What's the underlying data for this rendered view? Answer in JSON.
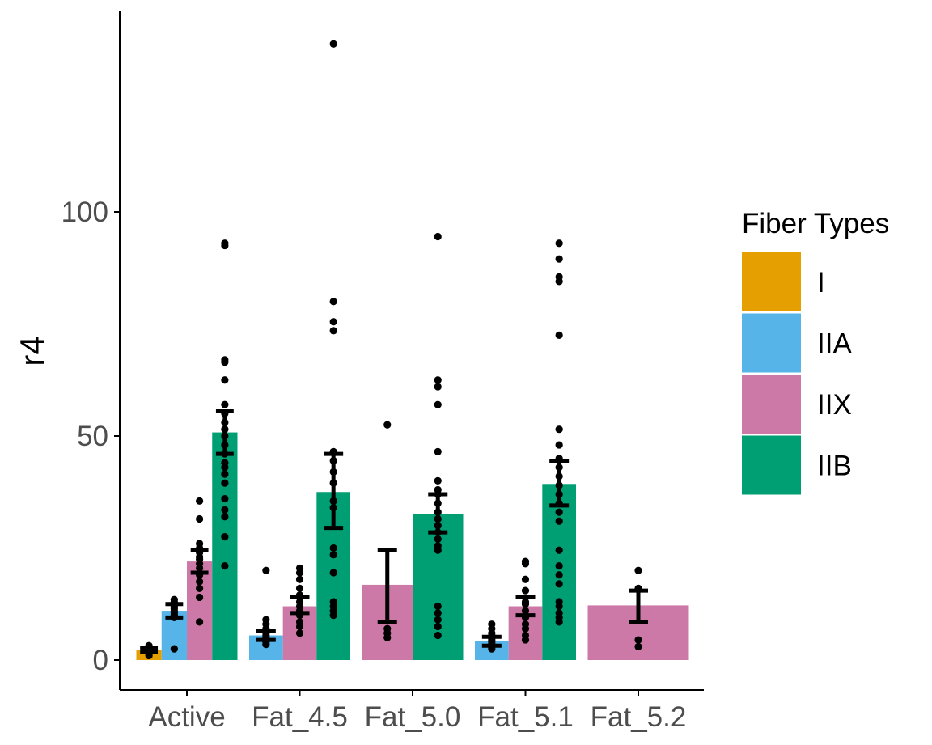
{
  "chart_data": {
    "type": "bar",
    "title": "",
    "xlabel": "",
    "ylabel": "r4",
    "ylim": [
      -7,
      138
    ],
    "yticks": [
      0,
      50,
      100
    ],
    "grid": false,
    "legend_position": "right",
    "legend_title": "Fiber Types",
    "categories": [
      "Active",
      "Fat_4.5",
      "Fat_5.0",
      "Fat_5.1",
      "Fat_5.2"
    ],
    "series": [
      {
        "name": "I",
        "color": "#E69F00"
      },
      {
        "name": "IIA",
        "color": "#56B4E9"
      },
      {
        "name": "IIX",
        "color": "#CC79A7"
      },
      {
        "name": "IIB",
        "color": "#009E73"
      }
    ],
    "groups": [
      {
        "category": "Active",
        "bars": [
          {
            "series": "I",
            "value": 2.3,
            "error": [
              1.8,
              2.8
            ],
            "points": [
              1.0,
              1.3,
              1.6,
              1.9,
              2.2,
              2.5,
              2.8,
              3.2
            ]
          },
          {
            "series": "IIA",
            "value": 11,
            "error": [
              9.5,
              12.5
            ],
            "points": [
              2.5,
              9.5,
              10.0,
              10.5,
              11.0,
              11.5,
              12.0,
              12.5,
              13.0,
              13.5
            ]
          },
          {
            "series": "IIX",
            "value": 22,
            "error": [
              19.5,
              24.5
            ],
            "points": [
              8.5,
              14,
              16,
              17.5,
              19,
              20.5,
              21.5,
              22.5,
              23,
              24,
              25,
              26,
              31.5,
              35.5
            ]
          },
          {
            "series": "IIB",
            "value": 50.8,
            "error": [
              46,
              55.5
            ],
            "points": [
              21,
              27.5,
              32,
              33.5,
              36,
              39.5,
              41.5,
              43,
              44,
              46,
              48,
              50,
              51.5,
              53,
              55,
              57,
              62.5,
              66.5,
              67,
              92.5,
              93
            ]
          }
        ]
      },
      {
        "category": "Fat_4.5",
        "bars": [
          {
            "series": "IIA",
            "value": 5.5,
            "error": [
              4.5,
              6.5
            ],
            "points": [
              3.5,
              4.0,
              4.5,
              5.0,
              5.5,
              6.0,
              6.5,
              7.0,
              8.0,
              9.0,
              20.0
            ]
          },
          {
            "series": "IIX",
            "value": 12,
            "error": [
              10.5,
              14
            ],
            "points": [
              6,
              7.5,
              8.5,
              10,
              11,
              12,
              13,
              14.5,
              16,
              18,
              19.5,
              20.5
            ]
          },
          {
            "series": "IIB",
            "value": 37.5,
            "error": [
              29.5,
              46
            ],
            "points": [
              10,
              11,
              12,
              13,
              19.5,
              23.5,
              25,
              34,
              35.5,
              39.5,
              42,
              44.5,
              46.5,
              73.5,
              75.5,
              80,
              137.5
            ]
          }
        ]
      },
      {
        "category": "Fat_5.0",
        "bars": [
          {
            "series": "IIX",
            "value": 16.8,
            "error": [
              8.5,
              24.5
            ],
            "points": [
              5,
              6,
              7,
              52.5
            ]
          },
          {
            "series": "IIB",
            "value": 32.5,
            "error": [
              28.5,
              37
            ],
            "points": [
              5.5,
              7.5,
              9,
              10.5,
              12,
              24.5,
              25.5,
              27,
              28.5,
              30,
              31.5,
              33,
              35,
              37,
              38,
              40,
              46.5,
              57,
              61,
              62.5,
              94.5
            ]
          }
        ]
      },
      {
        "category": "Fat_5.1",
        "bars": [
          {
            "series": "IIA",
            "value": 4.2,
            "error": [
              3.2,
              5.2
            ],
            "points": [
              2.5,
              3.0,
              3.5,
              4.0,
              4.5,
              5.0,
              5.5,
              6.0,
              7.0,
              8.0
            ]
          },
          {
            "series": "IIX",
            "value": 12,
            "error": [
              10,
              14
            ],
            "points": [
              4.5,
              5.5,
              7,
              8,
              9.5,
              11,
              12.5,
              13,
              15.5,
              18,
              21.5,
              22
            ]
          },
          {
            "series": "IIB",
            "value": 39.3,
            "error": [
              34.5,
              44.5
            ],
            "points": [
              8.5,
              9.5,
              10.5,
              12,
              13,
              17,
              19,
              21,
              24.5,
              31,
              33,
              35,
              37,
              39,
              41,
              43,
              45,
              48,
              51.5,
              72.5,
              84.5,
              85.5,
              89.5,
              93
            ]
          }
        ]
      },
      {
        "category": "Fat_5.2",
        "bars": [
          {
            "series": "IIX",
            "value": 12.2,
            "error": [
              8.5,
              15.5
            ],
            "points": [
              3,
              4.5,
              16,
              20
            ]
          }
        ]
      }
    ]
  }
}
